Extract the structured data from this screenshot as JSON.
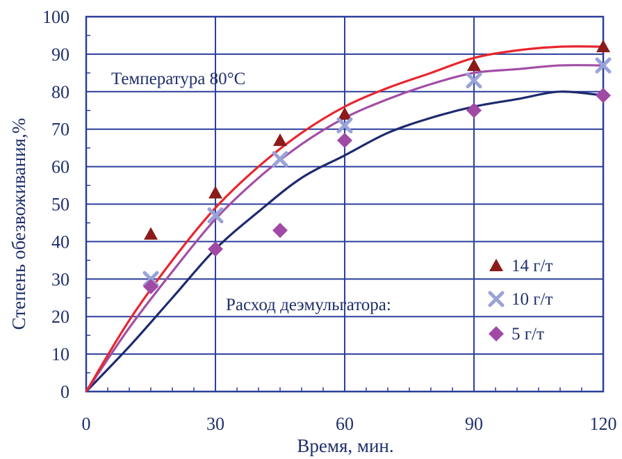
{
  "chart_data": {
    "type": "scatter",
    "xlabel": "Время, мин.",
    "ylabel": "Степень обезвоживания,%",
    "xlim": [
      0,
      120
    ],
    "ylim": [
      0,
      100
    ],
    "x_ticks": [
      "0",
      "30",
      "60",
      "90",
      "120"
    ],
    "y_ticks": [
      "0",
      "10",
      "20",
      "30",
      "40",
      "50",
      "60",
      "70",
      "80",
      "90",
      "100"
    ],
    "grid": true,
    "annotations": {
      "temperature": "Температура 80",
      "temperature_unit": "°С",
      "legend_title": "Расход деэмульгатора:"
    },
    "legend_position": "bottom-right",
    "series": [
      {
        "name": "14 г/т",
        "marker": "triangle",
        "color": "#8b1a1a",
        "line_color": "#e8262e",
        "points": [
          [
            0,
            0
          ],
          [
            15,
            42
          ],
          [
            30,
            53
          ],
          [
            45,
            67
          ],
          [
            60,
            74
          ],
          [
            90,
            87
          ],
          [
            120,
            92
          ]
        ],
        "trend": [
          [
            0,
            0
          ],
          [
            10,
            19
          ],
          [
            20,
            35
          ],
          [
            30,
            49
          ],
          [
            40,
            60
          ],
          [
            50,
            69
          ],
          [
            60,
            76
          ],
          [
            70,
            81
          ],
          [
            80,
            85
          ],
          [
            90,
            89
          ],
          [
            100,
            91
          ],
          [
            110,
            92
          ],
          [
            120,
            92
          ]
        ]
      },
      {
        "name": "10 г/т",
        "marker": "cross",
        "color": "#9aa3d8",
        "line_color": "#a24ea6",
        "points": [
          [
            0,
            0
          ],
          [
            15,
            30
          ],
          [
            30,
            47
          ],
          [
            45,
            62
          ],
          [
            60,
            71
          ],
          [
            90,
            83
          ],
          [
            120,
            87
          ]
        ],
        "trend": [
          [
            0,
            0
          ],
          [
            10,
            17
          ],
          [
            20,
            32
          ],
          [
            30,
            46
          ],
          [
            40,
            57
          ],
          [
            50,
            66
          ],
          [
            60,
            73
          ],
          [
            70,
            78
          ],
          [
            80,
            82
          ],
          [
            90,
            85
          ],
          [
            100,
            86
          ],
          [
            110,
            87
          ],
          [
            120,
            87
          ]
        ]
      },
      {
        "name": "5 г/т",
        "marker": "diamond",
        "color": "#a04aa6",
        "line_color": "#1e2a6e",
        "points": [
          [
            0,
            0
          ],
          [
            15,
            28
          ],
          [
            30,
            38
          ],
          [
            45,
            43
          ],
          [
            60,
            67
          ],
          [
            90,
            75
          ],
          [
            120,
            79
          ]
        ],
        "trend": [
          [
            0,
            0
          ],
          [
            10,
            12
          ],
          [
            20,
            25
          ],
          [
            30,
            38
          ],
          [
            40,
            48
          ],
          [
            50,
            57
          ],
          [
            60,
            63
          ],
          [
            70,
            69
          ],
          [
            80,
            73
          ],
          [
            90,
            76
          ],
          [
            100,
            78
          ],
          [
            110,
            80
          ],
          [
            120,
            79
          ]
        ]
      }
    ]
  }
}
